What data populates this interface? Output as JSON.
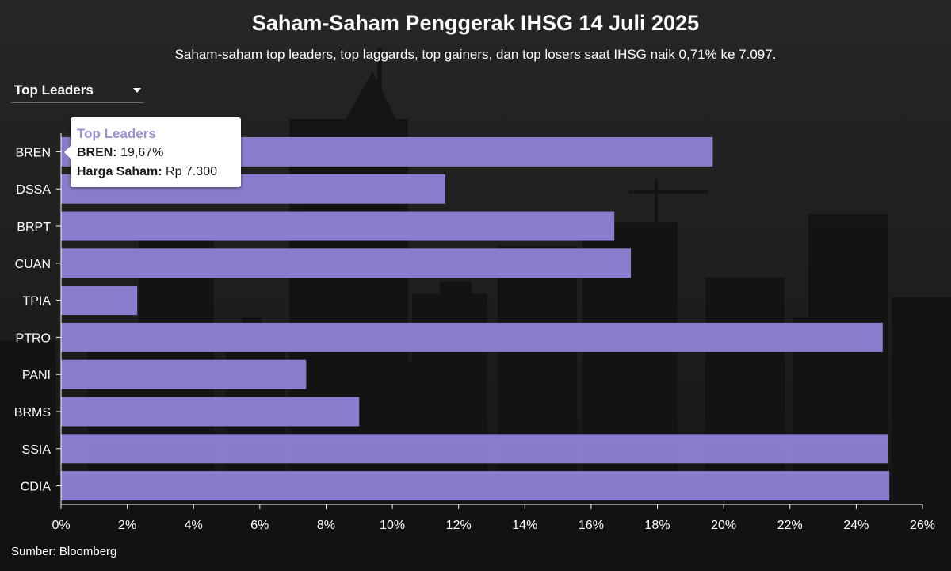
{
  "title": "Saham-Saham Penggerak IHSG 14 Juli 2025",
  "subtitle": "Saham-saham top leaders, top laggards, top gainers, dan top losers saat IHSG naik 0,71% ke 7.097.",
  "dropdown": {
    "selected": "Top Leaders"
  },
  "tooltip": {
    "title": "Top Leaders",
    "ticker": "BREN",
    "value": "19,67%",
    "price_label": "Harga Saham:",
    "price_value": "Rp 7.300"
  },
  "source": "Sumber: Bloomberg",
  "colors": {
    "bar": "#8f82d6",
    "tooltip_title": "#9c8fd8"
  },
  "chart_data": {
    "type": "bar",
    "orientation": "horizontal",
    "categories": [
      "BREN",
      "DSSA",
      "BRPT",
      "CUAN",
      "TPIA",
      "PTRO",
      "PANI",
      "BRMS",
      "SSIA",
      "CDIA"
    ],
    "values": [
      19.67,
      11.6,
      16.7,
      17.2,
      2.3,
      24.8,
      7.4,
      9.0,
      24.95,
      25.0
    ],
    "xlim": [
      0,
      26
    ],
    "xticks": [
      0,
      2,
      4,
      6,
      8,
      10,
      12,
      14,
      16,
      18,
      20,
      22,
      24,
      26
    ],
    "xtick_labels": [
      "0%",
      "2%",
      "4%",
      "6%",
      "8%",
      "10%",
      "12%",
      "14%",
      "16%",
      "18%",
      "20%",
      "22%",
      "24%",
      "26%"
    ],
    "grid": false,
    "legend": "none"
  }
}
